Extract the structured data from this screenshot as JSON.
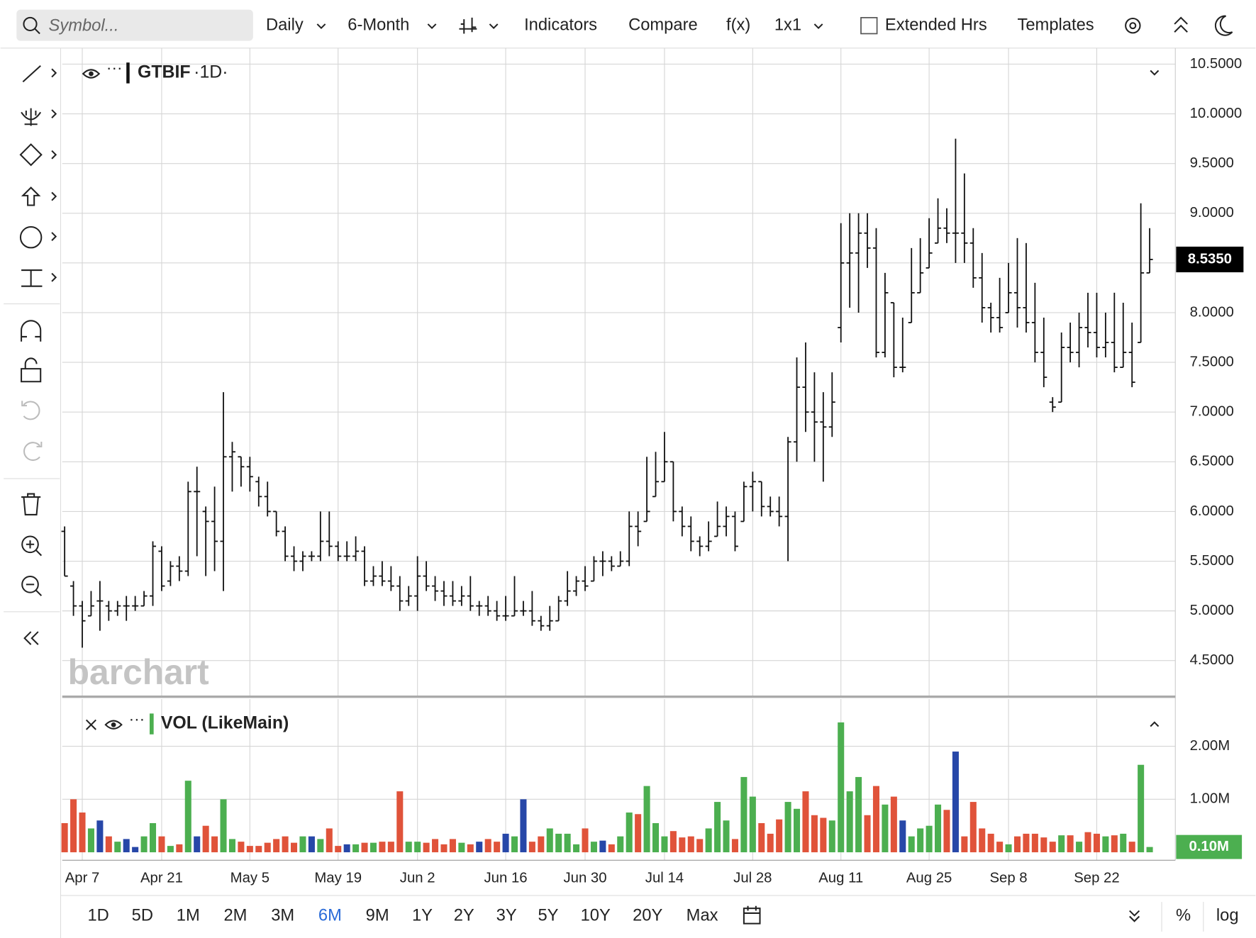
{
  "toolbar": {
    "symbol_placeholder": "Symbol...",
    "items": [
      "Daily",
      "6-Month",
      "Indicators",
      "Compare",
      "f(x)",
      "1x1",
      "Extended Hrs",
      "Templates"
    ]
  },
  "chart_data": {
    "type": "ohlc",
    "symbol": "GTBIF",
    "interval": "·1D·",
    "volume_title": "VOL (LikeMain)",
    "watermark": "barchart",
    "categories": [
      null,
      null,
      "Apr 7",
      null,
      null,
      null,
      null,
      null,
      null,
      null,
      null,
      "Apr 21",
      null,
      null,
      null,
      null,
      null,
      null,
      null,
      null,
      null,
      "May 5",
      null,
      null,
      null,
      null,
      null,
      null,
      null,
      null,
      null,
      "May 19",
      null,
      null,
      null,
      null,
      null,
      null,
      null,
      null,
      "Jun 2",
      null,
      null,
      null,
      null,
      null,
      null,
      null,
      null,
      null,
      "Jun 16",
      null,
      null,
      null,
      null,
      null,
      null,
      null,
      null,
      "Jun 30",
      null,
      null,
      null,
      null,
      null,
      null,
      null,
      null,
      "Jul 14",
      null,
      null,
      null,
      null,
      null,
      null,
      null,
      null,
      null,
      "Jul 28",
      null,
      null,
      null,
      null,
      null,
      null,
      null,
      null,
      null,
      "Aug 11",
      null,
      null,
      null,
      null,
      null,
      null,
      null,
      null,
      null,
      "Aug 25",
      null,
      null,
      null,
      null,
      null,
      null,
      null,
      null,
      "Sep 8",
      null,
      null,
      null,
      null,
      null,
      null,
      null,
      null,
      null,
      "Sep 22",
      null,
      null,
      null,
      null,
      null,
      null
    ],
    "open": [
      5.8,
      5.25,
      5.05,
      4.95,
      5.1,
      5.05,
      5.0,
      5.05,
      5.05,
      5.05,
      5.15,
      5.6,
      5.3,
      5.45,
      5.4,
      6.2,
      6.0,
      5.9,
      5.7,
      6.55,
      6.55,
      6.45,
      6.3,
      6.15,
      6.0,
      5.8,
      5.55,
      5.5,
      5.55,
      5.55,
      5.7,
      5.65,
      5.55,
      5.55,
      5.6,
      5.3,
      5.35,
      5.3,
      5.25,
      5.1,
      5.15,
      5.35,
      5.25,
      5.2,
      5.15,
      5.1,
      5.15,
      5.05,
      5.05,
      5.0,
      4.95,
      4.95,
      5.0,
      5.0,
      4.9,
      4.85,
      4.9,
      5.1,
      5.2,
      5.3,
      5.3,
      5.5,
      5.5,
      5.45,
      5.5,
      5.85,
      5.9,
      6.15,
      6.3,
      6.5,
      6.0,
      5.85,
      5.7,
      5.65,
      5.75,
      5.85,
      5.95,
      5.9,
      6.25,
      6.3,
      6.05,
      6.0,
      5.95,
      6.7,
      7.25,
      7.0,
      6.9,
      6.85,
      7.85,
      8.5,
      8.6,
      8.8,
      8.65,
      7.6,
      8.1,
      7.45,
      7.9,
      8.2,
      8.45,
      8.7,
      8.85,
      8.8,
      8.8,
      8.7,
      8.35,
      8.05,
      7.95,
      8.0,
      8.2,
      8.05,
      7.9,
      7.6,
      7.1,
      7.1,
      7.65,
      7.6,
      7.85,
      7.8,
      7.65,
      7.7,
      7.45,
      7.6,
      7.7,
      8.4
    ],
    "high": [
      5.85,
      5.3,
      5.1,
      5.2,
      5.3,
      5.1,
      5.1,
      5.15,
      5.15,
      5.2,
      5.7,
      5.65,
      5.5,
      5.55,
      6.3,
      6.45,
      6.05,
      6.25,
      7.2,
      6.7,
      6.55,
      6.55,
      6.35,
      6.3,
      6.0,
      5.85,
      5.65,
      5.6,
      5.6,
      6.0,
      6.0,
      5.7,
      5.7,
      5.75,
      5.65,
      5.45,
      5.5,
      5.45,
      5.35,
      5.25,
      5.55,
      5.5,
      5.35,
      5.3,
      5.3,
      5.25,
      5.35,
      5.1,
      5.15,
      5.1,
      5.15,
      5.35,
      5.1,
      5.2,
      4.95,
      5.05,
      5.15,
      5.4,
      5.35,
      5.45,
      5.55,
      5.6,
      5.55,
      5.6,
      6.0,
      6.0,
      6.55,
      6.6,
      6.8,
      6.5,
      6.05,
      5.95,
      5.75,
      5.9,
      6.1,
      6.05,
      6.0,
      6.3,
      6.4,
      6.3,
      6.15,
      6.15,
      6.75,
      7.55,
      7.7,
      7.4,
      7.2,
      7.4,
      8.9,
      9.0,
      9.0,
      9.0,
      8.85,
      8.4,
      8.1,
      7.95,
      8.65,
      8.75,
      8.95,
      9.15,
      9.05,
      9.75,
      9.4,
      8.85,
      8.6,
      8.1,
      8.35,
      8.5,
      8.75,
      8.7,
      8.3,
      7.95,
      7.15,
      7.8,
      7.9,
      8.0,
      8.2,
      8.2,
      8.0,
      8.2,
      8.1,
      7.9,
      9.1,
      8.85
    ],
    "low": [
      5.35,
      4.95,
      4.63,
      4.95,
      4.8,
      4.9,
      4.95,
      4.9,
      5.0,
      5.05,
      5.05,
      5.2,
      5.25,
      5.3,
      5.35,
      5.55,
      5.35,
      5.4,
      5.2,
      6.2,
      6.25,
      6.2,
      6.05,
      5.95,
      5.75,
      5.5,
      5.4,
      5.4,
      5.5,
      5.5,
      5.55,
      5.5,
      5.5,
      5.5,
      5.25,
      5.25,
      5.25,
      5.2,
      5.0,
      5.05,
      5.0,
      5.2,
      5.1,
      5.05,
      5.05,
      5.05,
      5.0,
      4.95,
      4.95,
      4.9,
      4.9,
      4.95,
      4.95,
      4.85,
      4.8,
      4.8,
      4.9,
      5.05,
      5.15,
      5.2,
      5.3,
      5.35,
      5.4,
      5.45,
      5.45,
      5.65,
      5.9,
      6.15,
      6.3,
      5.9,
      5.75,
      5.6,
      5.55,
      5.6,
      5.75,
      5.75,
      5.6,
      5.9,
      6.0,
      5.95,
      5.95,
      5.85,
      5.5,
      6.5,
      6.8,
      6.5,
      6.3,
      6.75,
      7.7,
      8.05,
      8.0,
      8.45,
      7.55,
      7.55,
      7.35,
      7.4,
      7.9,
      8.2,
      8.45,
      8.7,
      8.7,
      8.5,
      8.5,
      8.25,
      7.9,
      7.8,
      7.8,
      8.0,
      7.85,
      7.8,
      7.5,
      7.25,
      7.0,
      7.1,
      7.5,
      7.45,
      7.65,
      7.55,
      7.55,
      7.4,
      7.45,
      7.25,
      7.7,
      8.4
    ],
    "close": [
      5.35,
      5.05,
      4.9,
      5.05,
      5.1,
      5.0,
      5.05,
      5.05,
      5.05,
      5.15,
      5.65,
      5.25,
      5.45,
      5.4,
      6.2,
      6.2,
      5.9,
      5.7,
      6.55,
      6.6,
      6.45,
      6.35,
      6.15,
      6.0,
      5.8,
      5.55,
      5.5,
      5.55,
      5.55,
      5.7,
      5.65,
      5.55,
      5.55,
      5.6,
      5.3,
      5.35,
      5.3,
      5.25,
      5.1,
      5.15,
      5.35,
      5.25,
      5.2,
      5.15,
      5.1,
      5.15,
      5.05,
      5.05,
      5.0,
      4.95,
      4.95,
      5.0,
      5.0,
      4.9,
      4.85,
      4.9,
      5.1,
      5.2,
      5.3,
      5.25,
      5.5,
      5.5,
      5.45,
      5.5,
      5.85,
      5.8,
      6.0,
      6.3,
      6.5,
      6.0,
      5.85,
      5.7,
      5.65,
      5.7,
      5.85,
      5.95,
      5.65,
      6.25,
      6.3,
      6.05,
      6.0,
      5.95,
      6.7,
      7.25,
      7.0,
      6.9,
      6.85,
      7.1,
      8.5,
      8.6,
      8.8,
      8.65,
      7.6,
      8.2,
      7.45,
      7.45,
      8.2,
      8.4,
      8.6,
      8.85,
      8.8,
      8.8,
      8.7,
      8.35,
      8.05,
      7.95,
      7.85,
      8.2,
      8.05,
      7.9,
      7.6,
      7.35,
      7.05,
      7.65,
      7.6,
      7.85,
      7.8,
      7.65,
      7.7,
      7.45,
      7.6,
      7.3,
      8.4,
      8.535
    ],
    "last_close_label": "8.5350",
    "volume": [
      0.55,
      1.0,
      0.75,
      0.45,
      0.6,
      0.3,
      0.2,
      0.25,
      0.1,
      0.3,
      0.55,
      0.3,
      0.12,
      0.15,
      1.35,
      0.3,
      0.5,
      0.3,
      1.0,
      0.25,
      0.2,
      0.12,
      0.12,
      0.18,
      0.25,
      0.3,
      0.18,
      0.3,
      0.3,
      0.25,
      0.45,
      0.12,
      0.15,
      0.15,
      0.18,
      0.18,
      0.2,
      0.2,
      1.15,
      0.2,
      0.2,
      0.18,
      0.25,
      0.15,
      0.25,
      0.18,
      0.15,
      0.2,
      0.25,
      0.2,
      0.35,
      0.3,
      1.0,
      0.2,
      0.3,
      0.45,
      0.35,
      0.35,
      0.15,
      0.45,
      0.2,
      0.22,
      0.15,
      0.3,
      0.75,
      0.72,
      1.25,
      0.55,
      0.3,
      0.4,
      0.28,
      0.3,
      0.25,
      0.45,
      0.95,
      0.6,
      0.25,
      1.42,
      1.05,
      0.55,
      0.35,
      0.62,
      0.95,
      0.82,
      1.15,
      0.7,
      0.65,
      0.6,
      2.45,
      1.15,
      1.42,
      0.7,
      1.25,
      0.9,
      1.05,
      0.6,
      0.3,
      0.45,
      0.5,
      0.9,
      0.8,
      1.9,
      0.3,
      0.95,
      0.45,
      0.35,
      0.2,
      0.15,
      0.3,
      0.35,
      0.35,
      0.28,
      0.2,
      0.32,
      0.32,
      0.2,
      0.38,
      0.35,
      0.3,
      0.32,
      0.35,
      0.2,
      1.65,
      0.1
    ],
    "last_volume_label": "0.10M",
    "ylim": [
      4.145,
      10.645
    ],
    "yticks": [
      {
        "value": 10.5,
        "label": "10.5000"
      },
      {
        "value": 10,
        "label": "10.0000"
      },
      {
        "value": 9.5,
        "label": "9.5000"
      },
      {
        "value": 9,
        "label": "9.0000"
      },
      {
        "value": 8.5,
        "label": ""
      },
      {
        "value": 8,
        "label": "8.0000"
      },
      {
        "value": 7.5,
        "label": "7.5000"
      },
      {
        "value": 7,
        "label": "7.0000"
      },
      {
        "value": 6.5,
        "label": "6.5000"
      },
      {
        "value": 6,
        "label": "6.0000"
      },
      {
        "value": 5.5,
        "label": "5.5000"
      },
      {
        "value": 5,
        "label": "5.0000"
      },
      {
        "value": 4.5,
        "label": "4.5000"
      }
    ],
    "volume_ylim": [
      -0.15,
      2.92
    ],
    "volume_ticks": [
      {
        "value": 2,
        "label": "2.00M"
      },
      {
        "value": 1,
        "label": "1.00M"
      }
    ],
    "bar_color": "#111111",
    "up_color": "#4caf50",
    "down_color": "#e0533a",
    "flat_color": "#2747a8",
    "grid": true
  },
  "range_bar": {
    "items": [
      "1D",
      "5D",
      "1M",
      "2M",
      "3M",
      "6M",
      "9M",
      "1Y",
      "2Y",
      "3Y",
      "5Y",
      "10Y",
      "20Y",
      "Max"
    ],
    "selected": "6M",
    "percent": "%",
    "log": "log"
  }
}
